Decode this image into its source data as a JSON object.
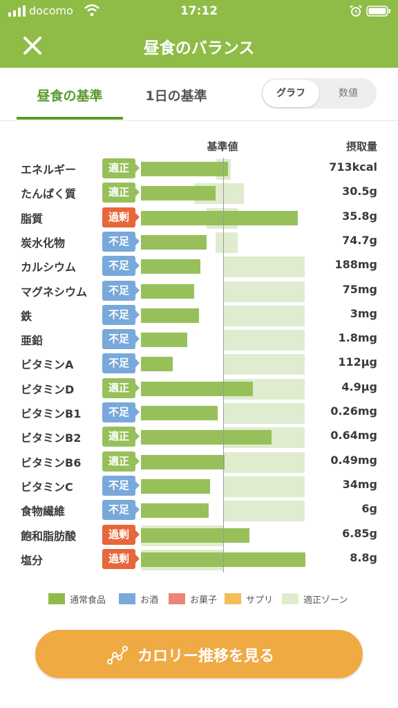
{
  "status_bar": {
    "carrier": "docomo",
    "time": "17:12"
  },
  "navbar": {
    "title": "昼食のバランス",
    "close_icon": "close-icon"
  },
  "tabs": [
    {
      "label": "昼食の基準",
      "active": true
    },
    {
      "label": "1日の基準",
      "active": false
    }
  ],
  "segment": {
    "options": [
      "グラフ",
      "数値"
    ],
    "selected": "グラフ"
  },
  "table": {
    "header_standard": "基準値",
    "header_intake": "摂取量",
    "rows": [
      {
        "name": "エネルギー",
        "status": "適正",
        "value": "713kcal",
        "bar_pct": 106,
        "zone_pct": [
          92,
          109
        ]
      },
      {
        "name": "たんぱく質",
        "status": "適正",
        "value": "30.5g",
        "bar_pct": 91,
        "zone_pct": [
          65,
          125
        ]
      },
      {
        "name": "脂質",
        "status": "過剰",
        "value": "35.8g",
        "bar_pct": 191,
        "zone_pct": [
          80,
          118
        ]
      },
      {
        "name": "炭水化物",
        "status": "不足",
        "value": "74.7g",
        "bar_pct": 80,
        "zone_pct": [
          91,
          118
        ]
      },
      {
        "name": "カルシウム",
        "status": "不足",
        "value": "188mg",
        "bar_pct": 72,
        "zone_pct": [
          100,
          199
        ]
      },
      {
        "name": "マグネシウム",
        "status": "不足",
        "value": "75mg",
        "bar_pct": 65,
        "zone_pct": [
          100,
          199
        ]
      },
      {
        "name": "鉄",
        "status": "不足",
        "value": "3mg",
        "bar_pct": 71,
        "zone_pct": [
          100,
          199
        ]
      },
      {
        "name": "亜鉛",
        "status": "不足",
        "value": "1.8mg",
        "bar_pct": 56,
        "zone_pct": [
          100,
          199
        ]
      },
      {
        "name": "ビタミンA",
        "status": "不足",
        "value": "112μg",
        "bar_pct": 39,
        "zone_pct": [
          100,
          199
        ]
      },
      {
        "name": "ビタミンD",
        "status": "適正",
        "value": "4.9μg",
        "bar_pct": 136,
        "zone_pct": [
          100,
          199
        ]
      },
      {
        "name": "ビタミンB1",
        "status": "不足",
        "value": "0.26mg",
        "bar_pct": 93,
        "zone_pct": [
          100,
          199
        ]
      },
      {
        "name": "ビタミンB2",
        "status": "適正",
        "value": "0.64mg",
        "bar_pct": 159,
        "zone_pct": [
          100,
          199
        ]
      },
      {
        "name": "ビタミンB6",
        "status": "適正",
        "value": "0.49mg",
        "bar_pct": 102,
        "zone_pct": [
          100,
          199
        ]
      },
      {
        "name": "ビタミンC",
        "status": "不足",
        "value": "34mg",
        "bar_pct": 84,
        "zone_pct": [
          100,
          199
        ]
      },
      {
        "name": "食物繊維",
        "status": "不足",
        "value": "6g",
        "bar_pct": 82,
        "zone_pct": [
          100,
          199
        ]
      },
      {
        "name": "飽和脂肪酸",
        "status": "過剰",
        "value": "6.85g",
        "bar_pct": 132,
        "zone_pct": [
          0,
          100
        ]
      },
      {
        "name": "塩分",
        "status": "過剰",
        "value": "8.8g",
        "bar_pct": 200,
        "zone_pct": [
          0,
          100
        ]
      }
    ]
  },
  "status_colors": {
    "適正": "#97c05b",
    "不足": "#78a9da",
    "過剰": "#e7663a"
  },
  "legend": [
    {
      "label": "通常食品",
      "color": "#8fbc46"
    },
    {
      "label": "お酒",
      "color": "#78a9da"
    },
    {
      "label": "お菓子",
      "color": "#ee8378"
    },
    {
      "label": "サプリ",
      "color": "#f3be56"
    },
    {
      "label": "適正ゾーン",
      "color": "#dfeccf"
    }
  ],
  "cta": {
    "label": "カロリー推移を見る",
    "icon": "chart-line-icon"
  }
}
